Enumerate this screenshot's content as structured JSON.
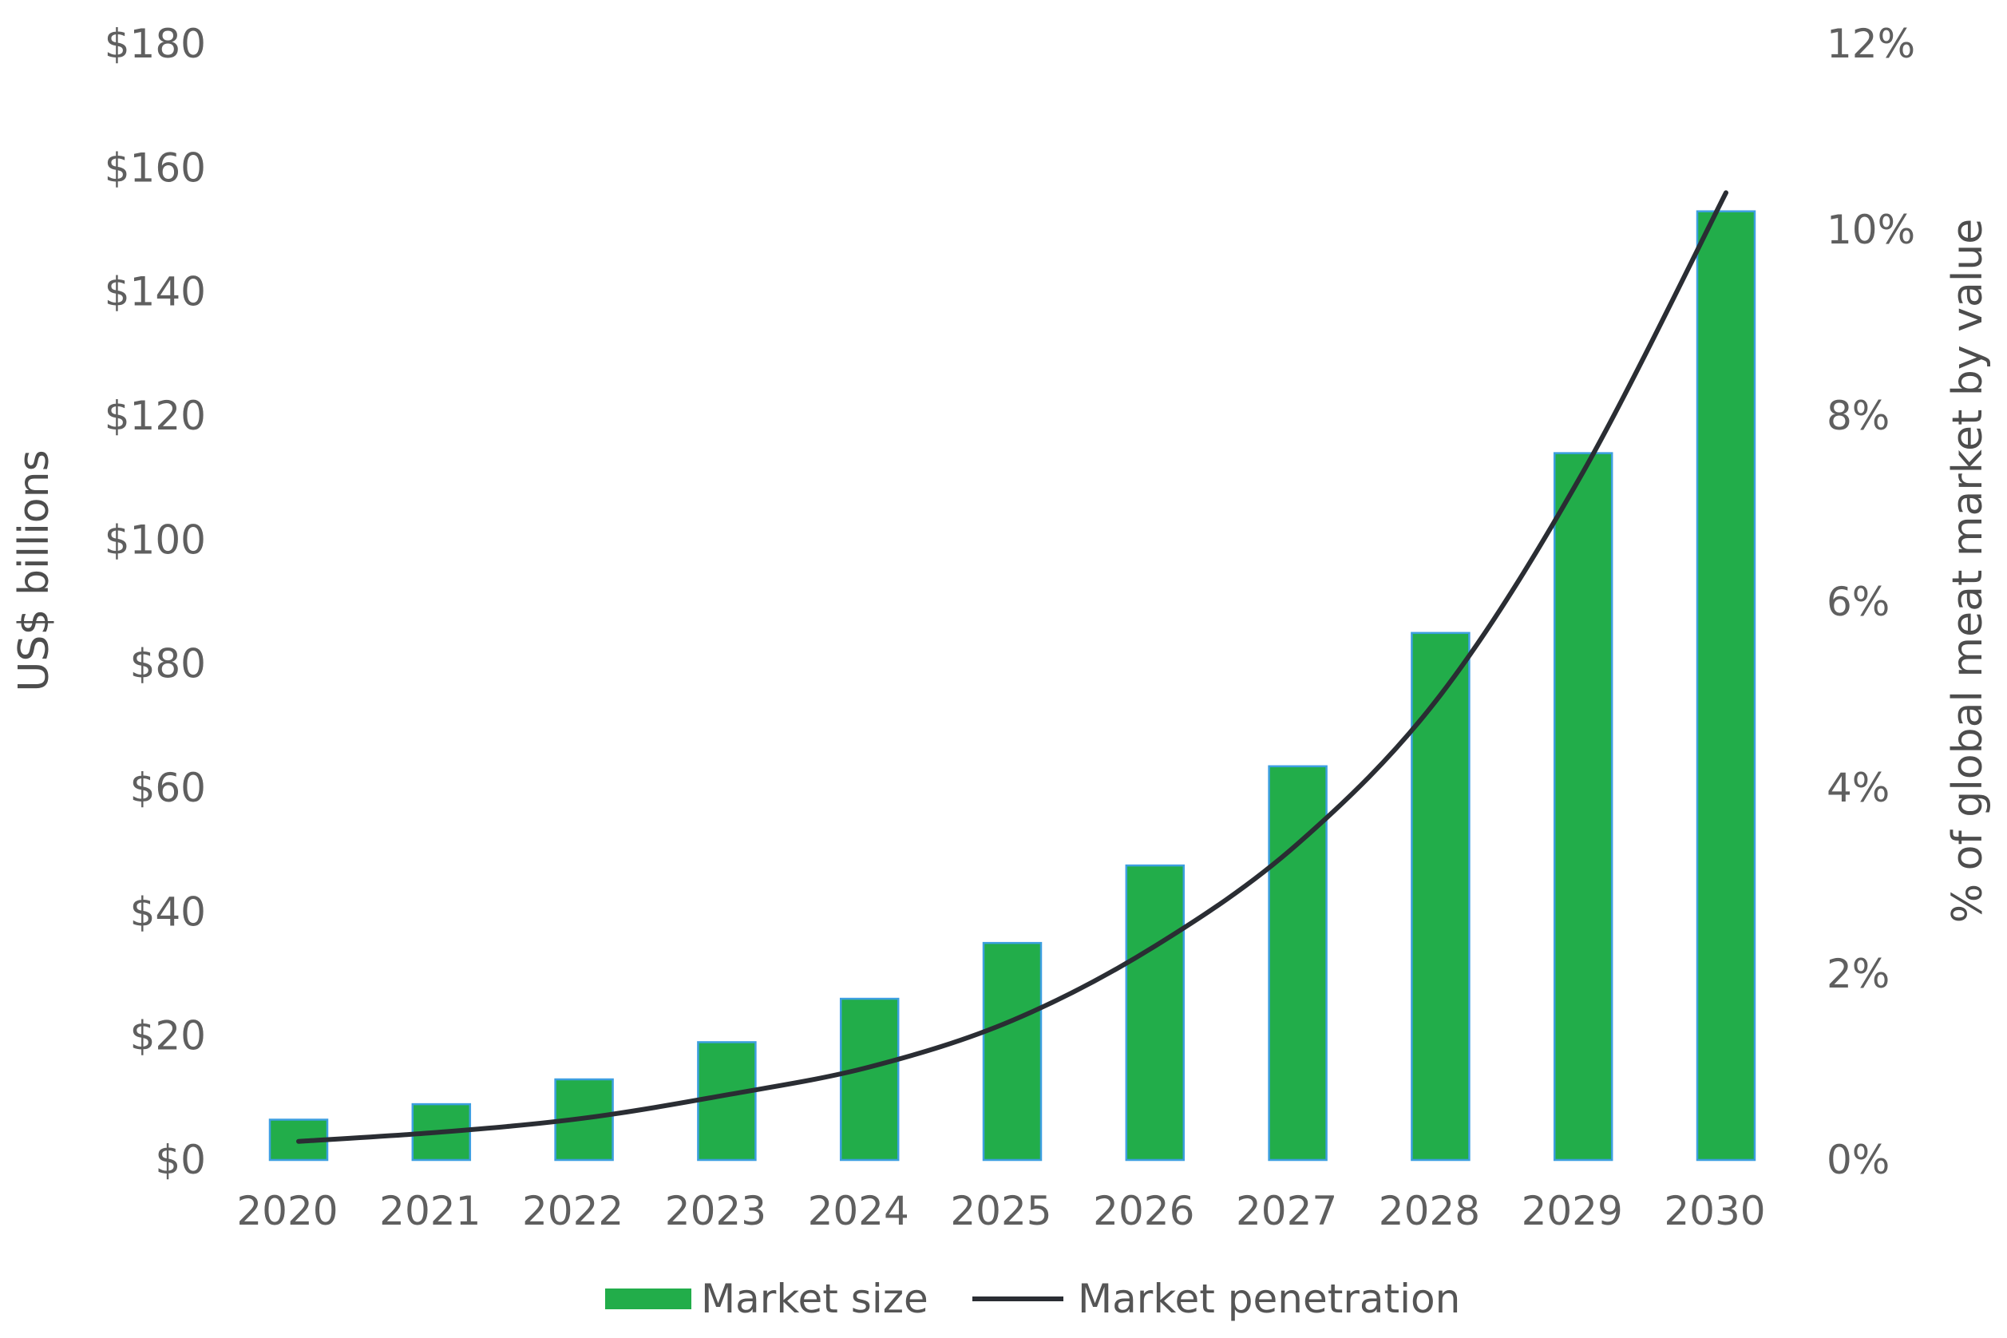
{
  "chart_data": {
    "type": "bar",
    "categories": [
      "2020",
      "2021",
      "2022",
      "2023",
      "2024",
      "2025",
      "2026",
      "2027",
      "2028",
      "2029",
      "2030"
    ],
    "series": [
      {
        "name": "Market size",
        "type": "bar",
        "axis": "left",
        "color": "#22ad4a",
        "edge_color": "#3d9fe0",
        "values": [
          6.5,
          9,
          13,
          19,
          26,
          35,
          47.5,
          63.5,
          85,
          114,
          153
        ]
      },
      {
        "name": "Market penetration",
        "type": "line",
        "axis": "right",
        "color": "#2a2d33",
        "values": [
          0.2,
          0.3,
          0.45,
          0.7,
          1.0,
          1.5,
          2.3,
          3.4,
          5.0,
          7.4,
          10.4
        ]
      }
    ],
    "y_left": {
      "label": "US$ billions",
      "range": [
        0,
        180
      ],
      "ticks": [
        0,
        20,
        40,
        60,
        80,
        100,
        120,
        140,
        160,
        180
      ],
      "tick_labels": [
        "$0",
        "$20",
        "$40",
        "$60",
        "$80",
        "$100",
        "$120",
        "$140",
        "$160",
        "$180"
      ]
    },
    "y_right": {
      "label": "% of global meat market by value",
      "range": [
        0,
        12
      ],
      "ticks": [
        0,
        2,
        4,
        6,
        8,
        10,
        12
      ],
      "tick_labels": [
        "0%",
        "2%",
        "4%",
        "6%",
        "8%",
        "10%",
        "12%"
      ]
    },
    "grid": false,
    "legend": {
      "position": "bottom-center",
      "items": [
        "Market size",
        "Market penetration"
      ]
    }
  }
}
